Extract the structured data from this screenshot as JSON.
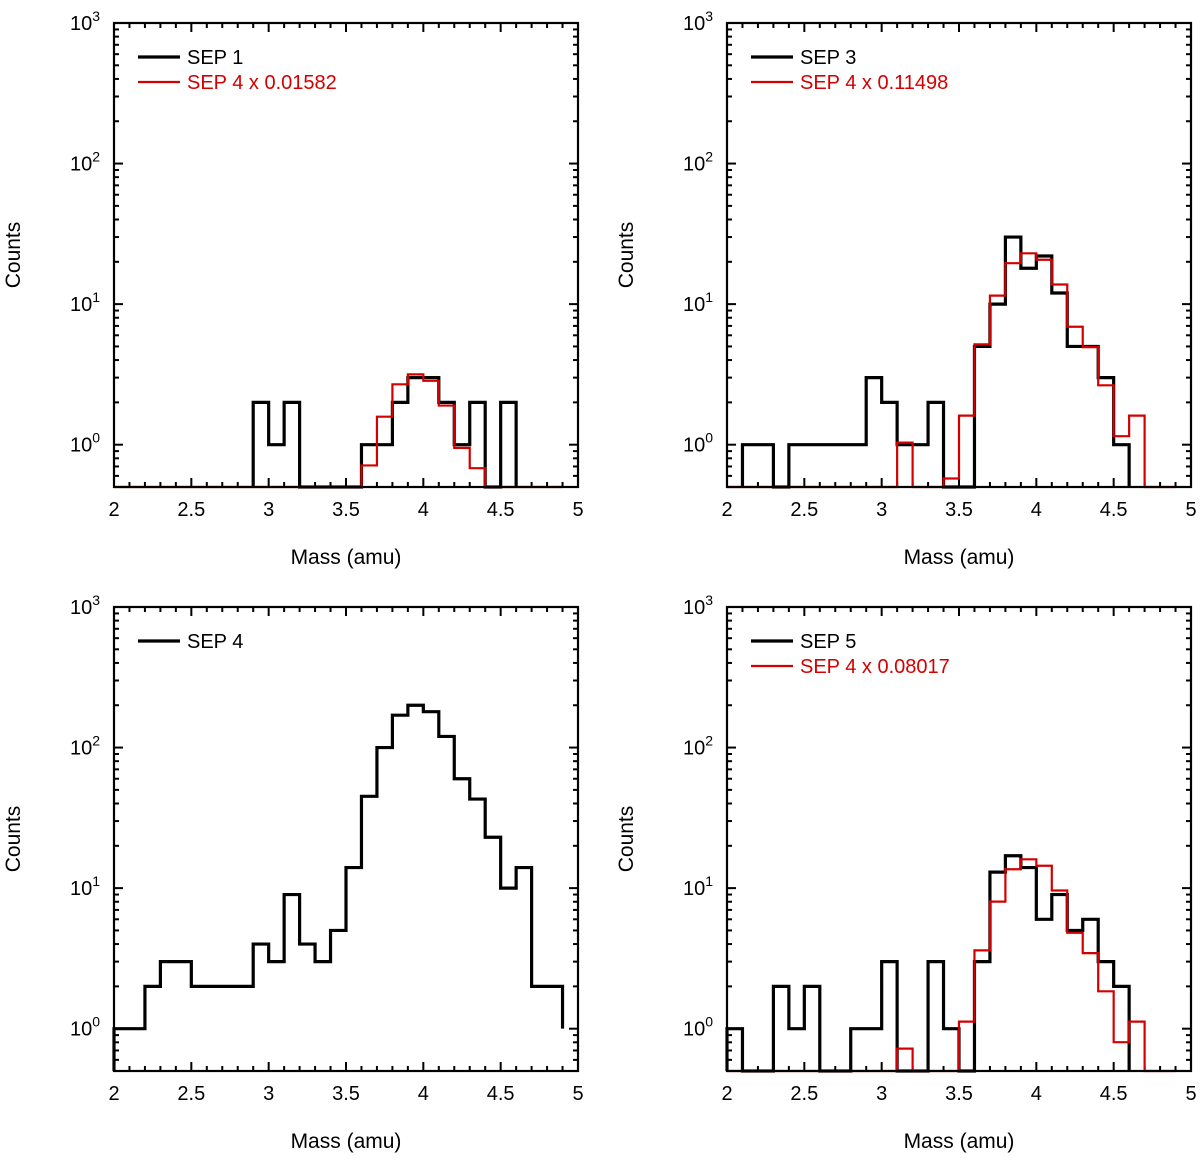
{
  "chart_data": [
    {
      "type": "histogram-step",
      "xlabel": "Mass (amu)",
      "ylabel": "Counts",
      "xlim": [
        2,
        5
      ],
      "ylim": [
        0.5,
        1000
      ],
      "yscale": "log",
      "bin_width": 0.1,
      "xticks": [
        "2",
        "2.5",
        "3",
        "3.5",
        "4",
        "4.5",
        "5"
      ],
      "yticks": [
        {
          "base": "10",
          "exp": "0"
        },
        {
          "base": "10",
          "exp": "1"
        },
        {
          "base": "10",
          "exp": "2"
        },
        {
          "base": "10",
          "exp": "3"
        }
      ],
      "series": [
        {
          "name": "SEP 1",
          "color": "#000000",
          "x0": 2.9,
          "counts": [
            2,
            1,
            2,
            0,
            0,
            0,
            0,
            1,
            1,
            2,
            3,
            3,
            2,
            1,
            2,
            0,
            2
          ]
        },
        {
          "name": "SEP 4 x 0.01582",
          "color": "#d40000",
          "scaled_from": "SEP 4",
          "factor": 0.01582
        }
      ]
    },
    {
      "type": "histogram-step",
      "xlabel": "Mass (amu)",
      "ylabel": "Counts",
      "xlim": [
        2,
        5
      ],
      "ylim": [
        0.5,
        1000
      ],
      "yscale": "log",
      "bin_width": 0.1,
      "xticks": [
        "2",
        "2.5",
        "3",
        "3.5",
        "4",
        "4.5",
        "5"
      ],
      "yticks": [
        {
          "base": "10",
          "exp": "0"
        },
        {
          "base": "10",
          "exp": "1"
        },
        {
          "base": "10",
          "exp": "2"
        },
        {
          "base": "10",
          "exp": "3"
        }
      ],
      "series": [
        {
          "name": "SEP 3",
          "color": "#000000",
          "x0": 2.1,
          "counts": [
            1,
            1,
            0,
            1,
            1,
            1,
            1,
            1,
            3,
            2,
            1,
            1,
            2,
            0,
            0,
            5,
            10,
            30,
            18,
            22,
            12,
            5,
            5,
            3,
            1
          ]
        },
        {
          "name": "SEP 4 x 0.11498",
          "color": "#d40000",
          "scaled_from": "SEP 4",
          "factor": 0.11498
        }
      ]
    },
    {
      "type": "histogram-step",
      "xlabel": "Mass (amu)",
      "ylabel": "Counts",
      "xlim": [
        2,
        5
      ],
      "ylim": [
        0.5,
        1000
      ],
      "yscale": "log",
      "bin_width": 0.1,
      "xticks": [
        "2",
        "2.5",
        "3",
        "3.5",
        "4",
        "4.5",
        "5"
      ],
      "yticks": [
        {
          "base": "10",
          "exp": "0"
        },
        {
          "base": "10",
          "exp": "1"
        },
        {
          "base": "10",
          "exp": "2"
        },
        {
          "base": "10",
          "exp": "3"
        }
      ],
      "series": [
        {
          "name": "SEP 4",
          "color": "#000000",
          "x0": 2.0,
          "counts": [
            1,
            1,
            2,
            3,
            3,
            2,
            2,
            2,
            2,
            4,
            3,
            9,
            4,
            3,
            5,
            14,
            45,
            100,
            170,
            200,
            180,
            120,
            60,
            43,
            23,
            10,
            14,
            2,
            2
          ]
        }
      ]
    },
    {
      "type": "histogram-step",
      "xlabel": "Mass (amu)",
      "ylabel": "Counts",
      "xlim": [
        2,
        5
      ],
      "ylim": [
        0.5,
        1000
      ],
      "yscale": "log",
      "bin_width": 0.1,
      "xticks": [
        "2",
        "2.5",
        "3",
        "3.5",
        "4",
        "4.5",
        "5"
      ],
      "yticks": [
        {
          "base": "10",
          "exp": "0"
        },
        {
          "base": "10",
          "exp": "1"
        },
        {
          "base": "10",
          "exp": "2"
        },
        {
          "base": "10",
          "exp": "3"
        }
      ],
      "series": [
        {
          "name": "SEP 5",
          "color": "#000000",
          "x0": 2.0,
          "counts": [
            1,
            0,
            0,
            2,
            1,
            2,
            0,
            0,
            1,
            1,
            3,
            0,
            0,
            3,
            1,
            0,
            3,
            13,
            17,
            14,
            6,
            9,
            5,
            6,
            3,
            2
          ]
        },
        {
          "name": "SEP 4 x 0.08017",
          "color": "#d40000",
          "scaled_from": "SEP 4",
          "factor": 0.08017
        }
      ]
    }
  ]
}
